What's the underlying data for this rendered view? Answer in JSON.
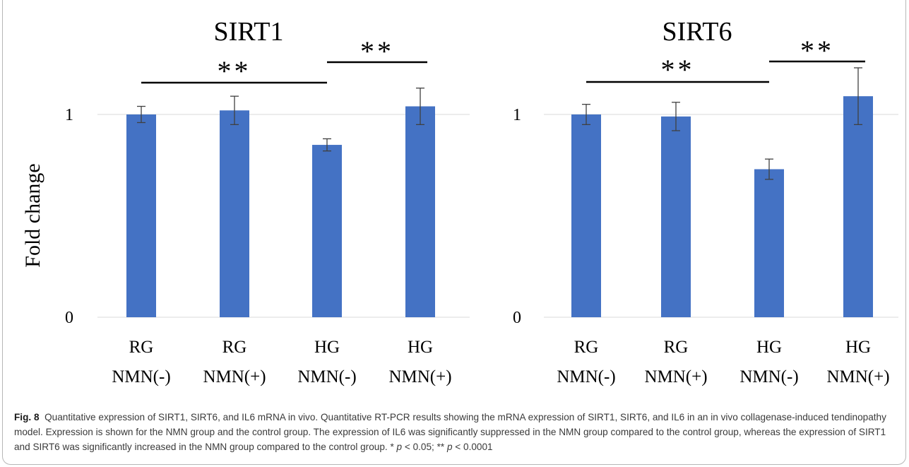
{
  "figure": {
    "ylabel": "Fold change",
    "panels": [
      {
        "title": "SIRT1",
        "significance": [
          {
            "from": 0,
            "to": 2,
            "label": "**"
          },
          {
            "from": 2,
            "to": 3,
            "label": "**"
          }
        ]
      },
      {
        "title": "SIRT6",
        "significance": [
          {
            "from": 0,
            "to": 2,
            "label": "**"
          },
          {
            "from": 2,
            "to": 3,
            "label": "**"
          }
        ]
      }
    ]
  },
  "chart_data": [
    {
      "type": "bar",
      "title": "SIRT1",
      "ylabel": "Fold change",
      "categories": [
        [
          "RG",
          "NMN(-)"
        ],
        [
          "RG",
          "NMN(+)"
        ],
        [
          "HG",
          "NMN(-)"
        ],
        [
          "HG",
          "NMN(+)"
        ]
      ],
      "values": [
        1.0,
        1.02,
        0.85,
        1.04
      ],
      "errors": [
        0.04,
        0.07,
        0.03,
        0.09
      ],
      "yticks": [
        0,
        1
      ],
      "ylim": [
        0,
        1.1
      ],
      "grid": true,
      "color": "#4472c4"
    },
    {
      "type": "bar",
      "title": "SIRT6",
      "ylabel": "",
      "categories": [
        [
          "RG",
          "NMN(-)"
        ],
        [
          "RG",
          "NMN(+)"
        ],
        [
          "HG",
          "NMN(-)"
        ],
        [
          "HG",
          "NMN(+)"
        ]
      ],
      "values": [
        1.0,
        0.99,
        0.73,
        1.09
      ],
      "errors": [
        0.05,
        0.07,
        0.05,
        0.14
      ],
      "yticks": [
        0,
        1
      ],
      "ylim": [
        0,
        1.1
      ],
      "grid": true,
      "color": "#4472c4"
    }
  ],
  "caption": {
    "fig_label": "Fig. 8",
    "text_main": "Quantitative expression of SIRT1, SIRT6, and IL6 mRNA in vivo. Quantitative RT-PCR results showing the mRNA expression of SIRT1, SIRT6, and IL6 in an in vivo collagenase-induced tendinopathy model. Expression is shown for the NMN group and the control group. The expression of IL6 was significantly suppressed in the NMN group compared to the control group, whereas the expression of SIRT1 and SIRT6 was significantly increased in the NMN group compared to the control group. * ",
    "p1": "p",
    "t1": " < 0.05; ** ",
    "p2": "p",
    "t2": " < 0.0001"
  }
}
